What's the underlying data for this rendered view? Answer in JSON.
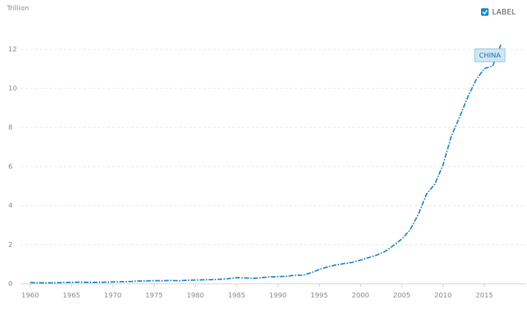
{
  "chart_data": {
    "type": "line",
    "y_label": "Trillion",
    "toggle_label": "LABEL",
    "x": [
      1960,
      1961,
      1962,
      1963,
      1964,
      1965,
      1966,
      1967,
      1968,
      1969,
      1970,
      1971,
      1972,
      1973,
      1974,
      1975,
      1976,
      1977,
      1978,
      1979,
      1980,
      1981,
      1982,
      1983,
      1984,
      1985,
      1986,
      1987,
      1988,
      1989,
      1990,
      1991,
      1992,
      1993,
      1994,
      1995,
      1996,
      1997,
      1998,
      1999,
      2000,
      2001,
      2002,
      2003,
      2004,
      2005,
      2006,
      2007,
      2008,
      2009,
      2010,
      2011,
      2012,
      2013,
      2014,
      2015,
      2016,
      2017
    ],
    "series": [
      {
        "name": "CHINA",
        "color": "#1f88c8",
        "values": [
          0.06,
          0.05,
          0.05,
          0.05,
          0.06,
          0.07,
          0.08,
          0.07,
          0.07,
          0.08,
          0.09,
          0.1,
          0.11,
          0.14,
          0.14,
          0.16,
          0.15,
          0.17,
          0.15,
          0.18,
          0.19,
          0.2,
          0.21,
          0.23,
          0.26,
          0.31,
          0.3,
          0.27,
          0.31,
          0.35,
          0.36,
          0.38,
          0.43,
          0.44,
          0.56,
          0.73,
          0.86,
          0.96,
          1.03,
          1.09,
          1.21,
          1.34,
          1.47,
          1.66,
          1.96,
          2.29,
          2.75,
          3.55,
          4.59,
          5.1,
          6.09,
          7.55,
          8.53,
          9.57,
          10.44,
          11.02,
          11.14,
          12.24
        ]
      }
    ],
    "xlim": [
      1959,
      2020
    ],
    "xticks": [
      1960,
      1965,
      1970,
      1975,
      1980,
      1985,
      1990,
      1995,
      2000,
      2005,
      2010,
      2015
    ],
    "ylim": [
      0,
      13
    ],
    "yticks": [
      0,
      2,
      4,
      6,
      8,
      10,
      12
    ],
    "grid": true
  }
}
